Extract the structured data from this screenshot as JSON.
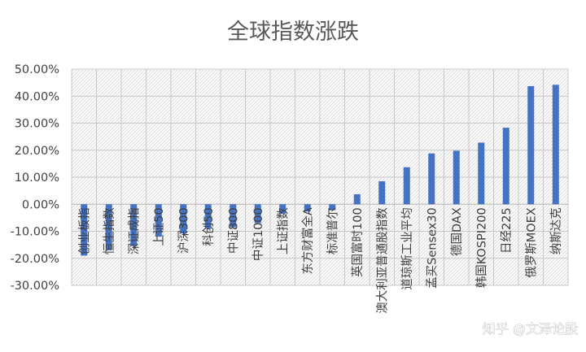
{
  "chart_data": {
    "type": "bar",
    "title": "全球指数涨跌",
    "xlabel": "",
    "ylabel": "",
    "ylim": [
      -0.3,
      0.5
    ],
    "ytick_values": [
      -0.3,
      -0.2,
      -0.1,
      0.0,
      0.1,
      0.2,
      0.3,
      0.4,
      0.5
    ],
    "ytick_labels": [
      "-30.00%",
      "-20.00%",
      "-10.00%",
      "0.00%",
      "10.00%",
      "20.00%",
      "30.00%",
      "40.00%",
      "50.00%"
    ],
    "categories": [
      "创业板指",
      "恒生指数",
      "深证成指",
      "上证50",
      "沪深300",
      "科创50",
      "中证800",
      "中证1000",
      "上证指数",
      "东方财富全A",
      "标准普尔",
      "英国富时100",
      "澳大利亚普通股指数",
      "道琼斯工业平均",
      "孟买Sensex30",
      "德国DAX",
      "韩国KOSPI200",
      "日经225",
      "俄罗斯MOEX",
      "纳斯达克"
    ],
    "values": [
      -0.19,
      -0.17,
      -0.155,
      -0.12,
      -0.108,
      -0.09,
      -0.085,
      -0.07,
      -0.035,
      -0.027,
      -0.022,
      0.037,
      0.085,
      0.137,
      0.188,
      0.198,
      0.228,
      0.283,
      0.437,
      0.442
    ],
    "bar_color": "#4472C4",
    "grid": true,
    "legend": "none"
  },
  "watermark": "知乎 @文泽论股"
}
